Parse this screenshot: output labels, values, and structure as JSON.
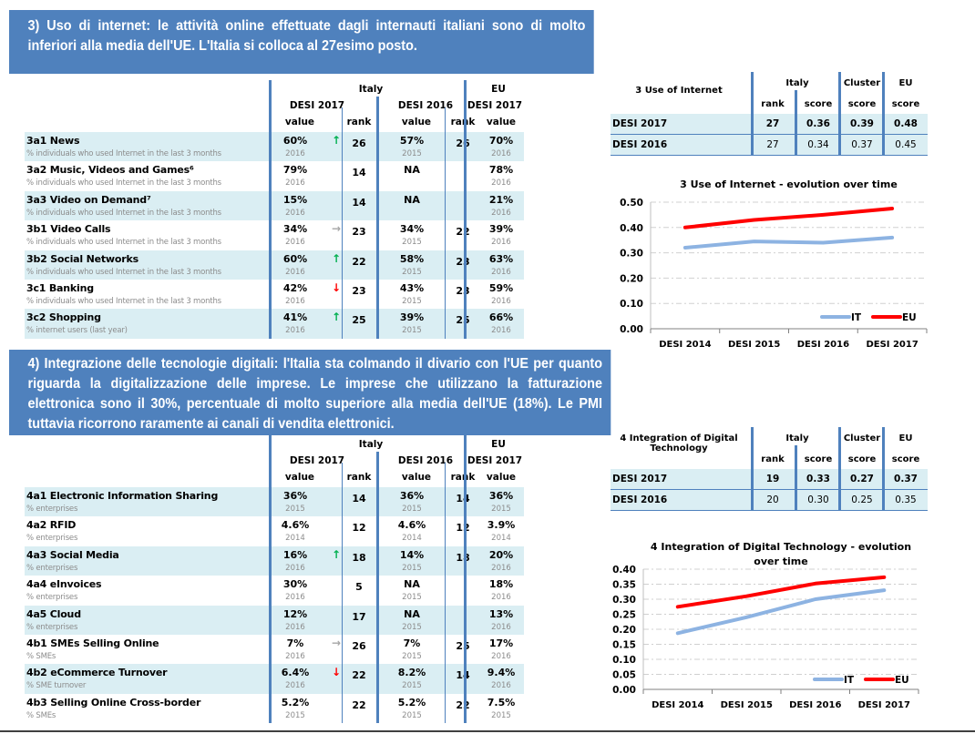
{
  "section3": {
    "banner": "3) Uso di internet: le attività online effettuate dagli internauti italiani sono di molto inferiori alla media dell'UE. L'Italia si colloca al 27esimo posto.",
    "table": {
      "headers": {
        "italy": "Italy",
        "eu": "EU",
        "desi2017": "DESI 2017",
        "desi2016": "DESI 2016",
        "eu_desi2017": "DESI 2017",
        "value": "value",
        "rank": "rank"
      },
      "rows": [
        {
          "name": "3a1 News",
          "sub": "% individuals who used Internet in the last 3 months",
          "v17": "60%",
          "trend": "up",
          "r17": "26",
          "y17": "2016",
          "v16": "57%",
          "r16": "26",
          "y16": "2015",
          "eu": "70%",
          "yeu": "2016"
        },
        {
          "name": "3a2 Music, Videos and Games⁶",
          "sub": "% individuals who used Internet in the last 3 months",
          "v17": "79%",
          "trend": "",
          "r17": "14",
          "y17": "2016",
          "v16": "NA",
          "r16": "",
          "y16": "",
          "eu": "78%",
          "yeu": "2016"
        },
        {
          "name": "3a3 Video on Demand⁷",
          "sub": "% individuals who used Internet in the last 3 months",
          "v17": "15%",
          "trend": "",
          "r17": "14",
          "y17": "2016",
          "v16": "NA",
          "r16": "",
          "y16": "",
          "eu": "21%",
          "yeu": "2016"
        },
        {
          "name": "3b1 Video Calls",
          "sub": "% individuals who used Internet in the last 3 months",
          "v17": "34%",
          "trend": "flat",
          "r17": "23",
          "y17": "2016",
          "v16": "34%",
          "r16": "22",
          "y16": "2015",
          "eu": "39%",
          "yeu": "2016"
        },
        {
          "name": "3b2 Social Networks",
          "sub": "% individuals who used Internet in the last 3 months",
          "v17": "60%",
          "trend": "up",
          "r17": "22",
          "y17": "2016",
          "v16": "58%",
          "r16": "23",
          "y16": "2015",
          "eu": "63%",
          "yeu": "2016"
        },
        {
          "name": "3c1 Banking",
          "sub": "% individuals who used Internet in the last 3 months",
          "v17": "42%",
          "trend": "down",
          "r17": "23",
          "y17": "2016",
          "v16": "43%",
          "r16": "23",
          "y16": "2015",
          "eu": "59%",
          "yeu": "2016"
        },
        {
          "name": "3c2 Shopping",
          "sub": "% internet users (last year)",
          "v17": "41%",
          "trend": "up",
          "r17": "25",
          "y17": "2016",
          "v16": "39%",
          "r16": "25",
          "y16": "2015",
          "eu": "66%",
          "yeu": "2016"
        }
      ]
    },
    "summary": {
      "title": "3 Use of Internet",
      "headers": {
        "italy": "Italy",
        "cluster": "Cluster",
        "eu": "EU",
        "rank": "rank",
        "score": "score"
      },
      "rows": [
        {
          "label": "DESI 2017",
          "rank": "27",
          "score": "0.36",
          "cluster": "0.39",
          "eu": "0.48"
        },
        {
          "label": "DESI 2016",
          "rank": "27",
          "score": "0.34",
          "cluster": "0.37",
          "eu": "0.45"
        }
      ]
    }
  },
  "section4": {
    "banner": "4) Integrazione delle tecnologie digitali: l'Italia sta colmando il divario con l'UE per quanto riguarda la digitalizzazione delle imprese. Le imprese che utilizzano la fatturazione elettronica sono il 30%, percentuale di molto superiore alla media dell'UE (18%). Le PMI tuttavia ricorrono raramente ai canali di vendita elettronici.",
    "table": {
      "headers": {
        "italy": "Italy",
        "eu": "EU",
        "desi2017": "DESI 2017",
        "desi2016": "DESI 2016",
        "eu_desi2017": "DESI 2017",
        "value": "value",
        "rank": "rank"
      },
      "rows": [
        {
          "name": "4a1 Electronic Information Sharing",
          "sub": "% enterprises",
          "v17": "36%",
          "trend": "",
          "r17": "14",
          "y17": "2015",
          "v16": "36%",
          "r16": "14",
          "y16": "2015",
          "eu": "36%",
          "yeu": "2015"
        },
        {
          "name": "4a2 RFID",
          "sub": "% enterprises",
          "v17": "4.6%",
          "trend": "",
          "r17": "12",
          "y17": "2014",
          "v16": "4.6%",
          "r16": "12",
          "y16": "2014",
          "eu": "3.9%",
          "yeu": "2014"
        },
        {
          "name": "4a3 Social Media",
          "sub": "% enterprises",
          "v17": "16%",
          "trend": "up",
          "r17": "18",
          "y17": "2016",
          "v16": "14%",
          "r16": "18",
          "y16": "2015",
          "eu": "20%",
          "yeu": "2016"
        },
        {
          "name": "4a4 eInvoices",
          "sub": "% enterprises",
          "v17": "30%",
          "trend": "",
          "r17": "5",
          "y17": "2016",
          "v16": "NA",
          "r16": "",
          "y16": "2015",
          "eu": "18%",
          "yeu": "2016"
        },
        {
          "name": "4a5 Cloud",
          "sub": "% enterprises",
          "v17": "12%",
          "trend": "",
          "r17": "17",
          "y17": "2016",
          "v16": "NA",
          "r16": "",
          "y16": "2015",
          "eu": "13%",
          "yeu": "2016"
        },
        {
          "name": "4b1 SMEs Selling Online",
          "sub": "% SMEs",
          "v17": "7%",
          "trend": "flat",
          "r17": "26",
          "y17": "2016",
          "v16": "7%",
          "r16": "25",
          "y16": "2015",
          "eu": "17%",
          "yeu": "2016"
        },
        {
          "name": "4b2 eCommerce Turnover",
          "sub": "% SME turnover",
          "v17": "6.4%",
          "trend": "down",
          "r17": "22",
          "y17": "2016",
          "v16": "8.2%",
          "r16": "14",
          "y16": "2015",
          "eu": "9.4%",
          "yeu": "2016"
        },
        {
          "name": "4b3 Selling Online Cross-border",
          "sub": "% SMEs",
          "v17": "5.2%",
          "trend": "",
          "r17": "22",
          "y17": "2015",
          "v16": "5.2%",
          "r16": "22",
          "y16": "2015",
          "eu": "7.5%",
          "yeu": "2015"
        }
      ]
    },
    "summary": {
      "title": "4 Integration of Digital Technology",
      "headers": {
        "italy": "Italy",
        "cluster": "Cluster",
        "eu": "EU",
        "rank": "rank",
        "score": "score"
      },
      "rows": [
        {
          "label": "DESI 2017",
          "rank": "19",
          "score": "0.33",
          "cluster": "0.27",
          "eu": "0.37"
        },
        {
          "label": "DESI 2016",
          "rank": "20",
          "score": "0.30",
          "cluster": "0.25",
          "eu": "0.35"
        }
      ]
    }
  },
  "trend_glyphs": {
    "up": "↑",
    "down": "↓",
    "flat": "→"
  },
  "colors": {
    "banner": "#4f81bd",
    "shade": "#daeef3",
    "it_line": "#8db3e2",
    "eu_line": "#ff0000",
    "up": "#00b050",
    "down": "#ff0000",
    "flat": "#a6a6a6"
  },
  "chart_data": [
    {
      "type": "line",
      "title": "3 Use of Internet - evolution over time",
      "categories": [
        "DESI 2014",
        "DESI 2015",
        "DESI 2016",
        "DESI 2017"
      ],
      "series": [
        {
          "name": "IT",
          "values": [
            0.32,
            0.345,
            0.34,
            0.36
          ]
        },
        {
          "name": "EU",
          "values": [
            0.4,
            0.43,
            0.45,
            0.475
          ]
        }
      ],
      "yticks": [
        "0.00",
        "0.10",
        "0.20",
        "0.30",
        "0.40",
        "0.50"
      ],
      "ylim": [
        0,
        0.5
      ],
      "grid": true,
      "legend": "bottom-right",
      "xlabel": "",
      "ylabel": ""
    },
    {
      "type": "line",
      "title": "4 Integration of Digital Technology - evolution over time",
      "title_lines": [
        "4 Integration of Digital Technology - evolution",
        "over time"
      ],
      "categories": [
        "DESI 2014",
        "DESI 2015",
        "DESI 2016",
        "DESI 2017"
      ],
      "series": [
        {
          "name": "IT",
          "values": [
            0.187,
            0.24,
            0.3,
            0.33
          ]
        },
        {
          "name": "EU",
          "values": [
            0.275,
            0.31,
            0.352,
            0.373
          ]
        }
      ],
      "yticks": [
        "0.00",
        "0.05",
        "0.10",
        "0.15",
        "0.20",
        "0.25",
        "0.30",
        "0.35",
        "0.40"
      ],
      "ylim": [
        0,
        0.4
      ],
      "grid": true,
      "legend": "bottom-right",
      "xlabel": "",
      "ylabel": ""
    }
  ]
}
